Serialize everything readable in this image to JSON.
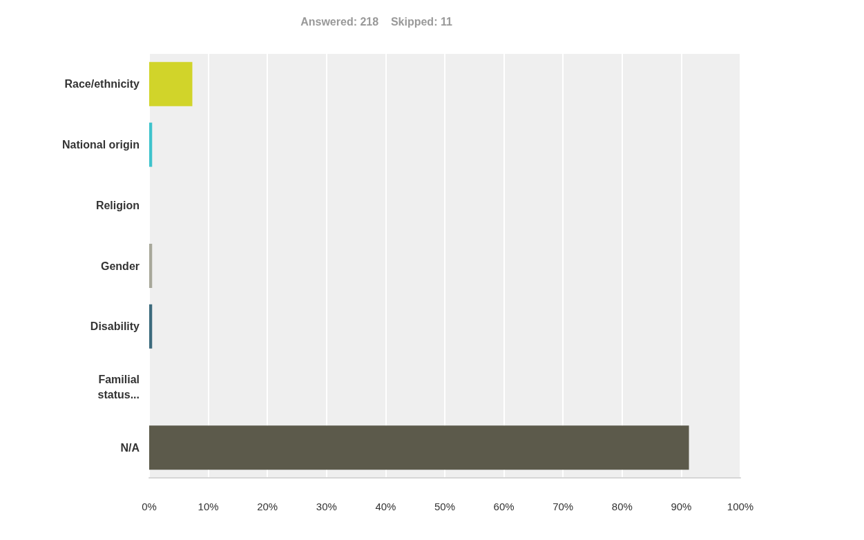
{
  "chart_data": {
    "type": "bar",
    "orientation": "horizontal",
    "title": "Answered: 218    Skipped: 11",
    "categories": [
      "Race/ethnicity",
      "National origin",
      "Religion",
      "Gender",
      "Disability",
      "Familial\nstatus...",
      "N/A"
    ],
    "values": [
      7.3,
      0.5,
      0,
      0.5,
      0.5,
      0,
      91.3
    ],
    "colors": [
      "#d1d42a",
      "#3fc3cc",
      "#e07b3c",
      "#a8a89a",
      "#3d6b7d",
      "#8a6fae",
      "#5c5a4b"
    ],
    "xlim": [
      0,
      100
    ],
    "xticks": [
      {
        "value": 0,
        "label": "0%"
      },
      {
        "value": 10,
        "label": "10%"
      },
      {
        "value": 20,
        "label": "20%"
      },
      {
        "value": 30,
        "label": "30%"
      },
      {
        "value": 40,
        "label": "40%"
      },
      {
        "value": 50,
        "label": "50%"
      },
      {
        "value": 60,
        "label": "60%"
      },
      {
        "value": 70,
        "label": "70%"
      },
      {
        "value": 80,
        "label": "80%"
      },
      {
        "value": 90,
        "label": "90%"
      },
      {
        "value": 100,
        "label": "100%"
      }
    ],
    "grid": "x"
  }
}
